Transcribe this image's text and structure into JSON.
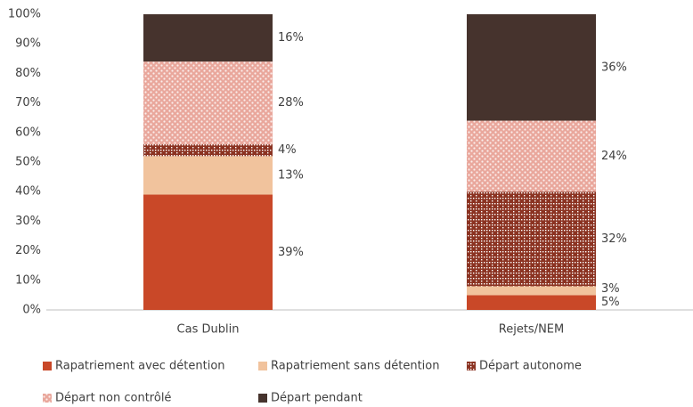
{
  "chart_data": {
    "type": "stacked_bar",
    "categories": [
      "Cas Dublin",
      "Rejets/NEM"
    ],
    "series": [
      {
        "name": "Rapatriement avec détention",
        "color": "#c94828",
        "values": [
          39,
          5
        ],
        "value_labels": [
          "39%",
          "5%"
        ]
      },
      {
        "name": "Rapatriement sans détention",
        "color": "#f1c39d",
        "values": [
          13,
          3
        ],
        "value_labels": [
          "13%",
          "3%"
        ]
      },
      {
        "name": "Départ autonome",
        "color": "#8b3322",
        "pattern": "dots",
        "values": [
          4,
          32
        ],
        "value_labels": [
          "4%",
          "32%"
        ]
      },
      {
        "name": "Départ non contrôlé",
        "color": "#e9a79c",
        "pattern": "dots",
        "values": [
          28,
          24
        ],
        "value_labels": [
          "28%",
          "24%"
        ]
      },
      {
        "name": "Départ pendant",
        "color": "#46332d",
        "values": [
          16,
          36
        ],
        "value_labels": [
          "16%",
          "36%"
        ]
      }
    ],
    "ylim": [
      0,
      100
    ],
    "yticks": [
      {
        "value": 0,
        "label": "0%"
      },
      {
        "value": 10,
        "label": "10%"
      },
      {
        "value": 20,
        "label": "20%"
      },
      {
        "value": 30,
        "label": "30%"
      },
      {
        "value": 40,
        "label": "40%"
      },
      {
        "value": 50,
        "label": "50%"
      },
      {
        "value": 60,
        "label": "60%"
      },
      {
        "value": 70,
        "label": "70%"
      },
      {
        "value": 80,
        "label": "80%"
      },
      {
        "value": 90,
        "label": "90%"
      },
      {
        "value": 100,
        "label": "100%"
      }
    ],
    "grid": false,
    "legend": "bottom"
  }
}
